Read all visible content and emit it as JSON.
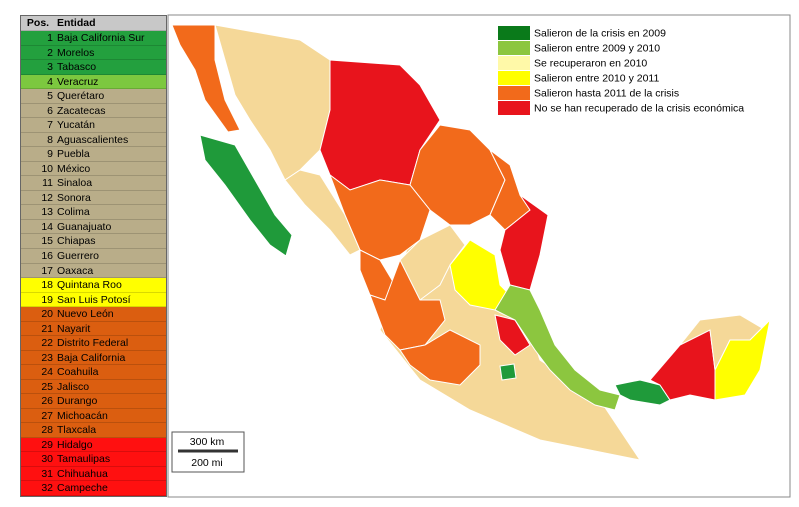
{
  "table": {
    "header": [
      "Pos.",
      "Entidad"
    ],
    "rows": [
      {
        "pos": 1,
        "name": "Baja California Sur",
        "color": "#23a03e"
      },
      {
        "pos": 2,
        "name": "Morelos",
        "color": "#23a03e"
      },
      {
        "pos": 3,
        "name": "Tabasco",
        "color": "#23a03e"
      },
      {
        "pos": 4,
        "name": "Veracruz",
        "color": "#7cc83f"
      },
      {
        "pos": 5,
        "name": "Querétaro",
        "color": "#b9ad89"
      },
      {
        "pos": 6,
        "name": "Zacatecas",
        "color": "#b9ad89"
      },
      {
        "pos": 7,
        "name": "Yucatán",
        "color": "#b9ad89"
      },
      {
        "pos": 8,
        "name": "Aguascalientes",
        "color": "#b9ad89"
      },
      {
        "pos": 9,
        "name": "Puebla",
        "color": "#b9ad89"
      },
      {
        "pos": 10,
        "name": "México",
        "color": "#b9ad89"
      },
      {
        "pos": 11,
        "name": "Sinaloa",
        "color": "#b9ad89"
      },
      {
        "pos": 12,
        "name": "Sonora",
        "color": "#b9ad89"
      },
      {
        "pos": 13,
        "name": "Colima",
        "color": "#b9ad89"
      },
      {
        "pos": 14,
        "name": "Guanajuato",
        "color": "#b9ad89"
      },
      {
        "pos": 15,
        "name": "Chiapas",
        "color": "#b9ad89"
      },
      {
        "pos": 16,
        "name": "Guerrero",
        "color": "#b9ad89"
      },
      {
        "pos": 17,
        "name": "Oaxaca",
        "color": "#b9ad89"
      },
      {
        "pos": 18,
        "name": "Quintana Roo",
        "color": "#ffff00"
      },
      {
        "pos": 19,
        "name": "San Luis Potosí",
        "color": "#ffff00"
      },
      {
        "pos": 20,
        "name": "Nuevo León",
        "color": "#db5e10"
      },
      {
        "pos": 21,
        "name": "Nayarit",
        "color": "#db5e10"
      },
      {
        "pos": 22,
        "name": "Distrito Federal",
        "color": "#db5e10"
      },
      {
        "pos": 23,
        "name": "Baja California",
        "color": "#db5e10"
      },
      {
        "pos": 24,
        "name": "Coahuila",
        "color": "#db5e10"
      },
      {
        "pos": 25,
        "name": "Jalisco",
        "color": "#db5e10"
      },
      {
        "pos": 26,
        "name": "Durango",
        "color": "#db5e10"
      },
      {
        "pos": 27,
        "name": "Michoacán",
        "color": "#db5e10"
      },
      {
        "pos": 28,
        "name": "Tlaxcala",
        "color": "#db5e10"
      },
      {
        "pos": 29,
        "name": "Hidalgo",
        "color": "#ff1010"
      },
      {
        "pos": 30,
        "name": "Tamaulipas",
        "color": "#ff1010"
      },
      {
        "pos": 31,
        "name": "Chihuahua",
        "color": "#ff1010"
      },
      {
        "pos": 32,
        "name": "Campeche",
        "color": "#ff1010"
      }
    ]
  },
  "legend": [
    {
      "label": "Salieron de la crisis en 2009",
      "color": "#0a7a1a"
    },
    {
      "label": "Salieron entre 2009 y 2010",
      "color": "#8cc63f"
    },
    {
      "label": "Se recuperaron en 2010",
      "color": "#fff9a8"
    },
    {
      "label": "Salieron entre 2010 y 2011",
      "color": "#ffff00"
    },
    {
      "label": "Salieron hasta 2011 de la crisis",
      "color": "#f26a1b"
    },
    {
      "label": "No se han recuperado de la crisis económica",
      "color": "#e8141c"
    }
  ],
  "scale": {
    "km": "300 km",
    "mi": "200 mi"
  }
}
